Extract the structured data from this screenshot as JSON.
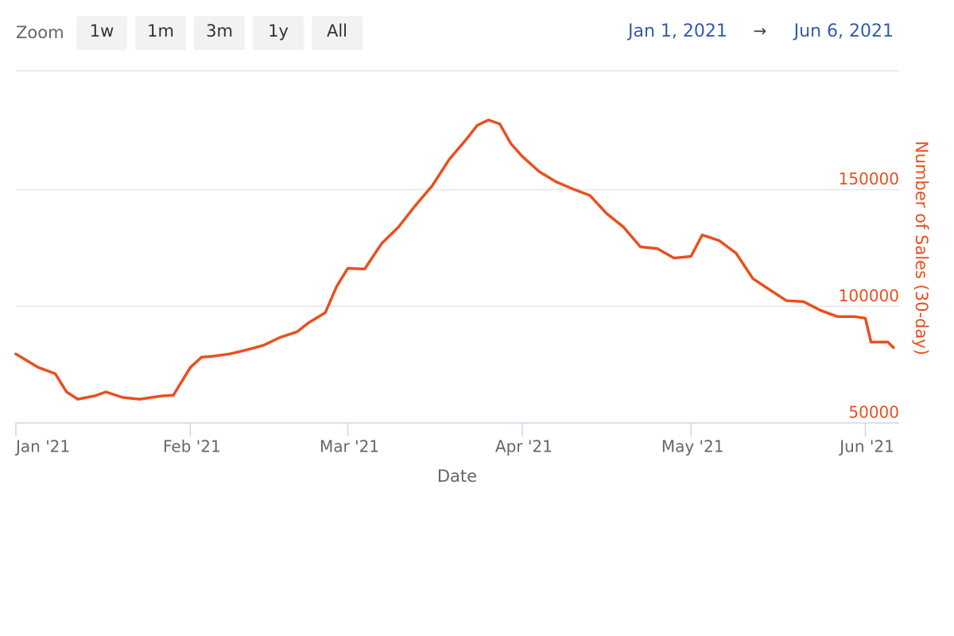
{
  "chart_data": {
    "type": "line",
    "zoom_label": "Zoom",
    "zoom_buttons": [
      "1w",
      "1m",
      "3m",
      "1y",
      "All"
    ],
    "range_start": "Jan 1, 2021",
    "range_arrow": "→",
    "range_end": "Jun 6, 2021",
    "xlabel": "Date",
    "ylabel": "Number of Sales (30-day)",
    "x": [
      "2021-01-01",
      "2021-01-05",
      "2021-01-08",
      "2021-01-10",
      "2021-01-12",
      "2021-01-15",
      "2021-01-17",
      "2021-01-20",
      "2021-01-23",
      "2021-01-27",
      "2021-01-29",
      "2021-02-01",
      "2021-02-03",
      "2021-02-05",
      "2021-02-08",
      "2021-02-11",
      "2021-02-14",
      "2021-02-17",
      "2021-02-20",
      "2021-02-22",
      "2021-02-25",
      "2021-02-27",
      "2021-03-01",
      "2021-03-04",
      "2021-03-07",
      "2021-03-10",
      "2021-03-13",
      "2021-03-16",
      "2021-03-19",
      "2021-03-22",
      "2021-03-24",
      "2021-03-26",
      "2021-03-28",
      "2021-03-30",
      "2021-04-01",
      "2021-04-04",
      "2021-04-07",
      "2021-04-10",
      "2021-04-13",
      "2021-04-16",
      "2021-04-19",
      "2021-04-22",
      "2021-04-25",
      "2021-04-28",
      "2021-05-01",
      "2021-05-03",
      "2021-05-06",
      "2021-05-09",
      "2021-05-12",
      "2021-05-15",
      "2021-05-18",
      "2021-05-21",
      "2021-05-24",
      "2021-05-27",
      "2021-05-30",
      "2021-06-01",
      "2021-06-02",
      "2021-06-05",
      "2021-06-06"
    ],
    "series": [
      {
        "name": "Number of Sales (30-day)",
        "color": "#e8501f",
        "values": [
          79600,
          73800,
          71100,
          63300,
          60200,
          61600,
          63300,
          60900,
          60200,
          61600,
          61900,
          73800,
          78200,
          78600,
          79600,
          81300,
          83300,
          86700,
          89100,
          92900,
          97300,
          108500,
          116300,
          116000,
          126900,
          134000,
          143200,
          151700,
          162900,
          171400,
          177600,
          179900,
          178200,
          169700,
          164300,
          157800,
          153400,
          150300,
          147600,
          139800,
          134000,
          125500,
          124800,
          120700,
          121400,
          130600,
          128200,
          122800,
          111900,
          107100,
          102400,
          102000,
          98300,
          95600,
          95600,
          94900,
          84700,
          84700,
          82300
        ]
      }
    ],
    "xlim": [
      "2021-01-01",
      "2021-06-07"
    ],
    "xticks": [
      {
        "value": "2021-01-01",
        "label": "Jan '21"
      },
      {
        "value": "2021-02-01",
        "label": "Feb '21"
      },
      {
        "value": "2021-03-01",
        "label": "Mar '21"
      },
      {
        "value": "2021-04-01",
        "label": "Apr '21"
      },
      {
        "value": "2021-05-01",
        "label": "May '21"
      },
      {
        "value": "2021-06-01",
        "label": "Jun '21"
      }
    ],
    "ylim": [
      50000,
      201000
    ],
    "yticks": [
      50000,
      100000,
      150000
    ],
    "grid": true
  }
}
